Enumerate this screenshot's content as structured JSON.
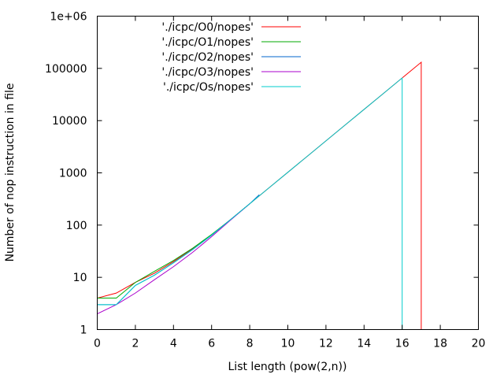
{
  "chart_data": {
    "type": "line",
    "title": "",
    "xlabel": "List length (pow(2,n))",
    "ylabel": "Number of nop instruction in file",
    "xlim": [
      0,
      20
    ],
    "ylim": [
      1,
      1000000
    ],
    "yscale": "log",
    "grid": false,
    "legend_position": "top-left",
    "x_ticks": [
      "0",
      "2",
      "4",
      "6",
      "8",
      "10",
      "12",
      "14",
      "16",
      "18",
      "20"
    ],
    "y_ticks": [
      "1",
      "10",
      "100",
      "1000",
      "10000",
      "100000",
      "1e+06"
    ],
    "series": [
      {
        "name": "'./icpc/O0/nopes'",
        "color": "#ff0000",
        "points": [
          [
            0,
            4
          ],
          [
            1,
            5
          ],
          [
            2,
            8
          ],
          [
            3,
            12
          ],
          [
            4,
            20
          ],
          [
            5,
            35
          ],
          [
            6,
            65
          ],
          [
            7,
            128
          ],
          [
            8,
            256
          ],
          [
            9,
            512
          ],
          [
            10,
            1024
          ],
          [
            11,
            2048
          ],
          [
            12,
            4096
          ],
          [
            13,
            8192
          ],
          [
            14,
            16384
          ],
          [
            15,
            32768
          ],
          [
            16,
            65536
          ],
          [
            17,
            131072
          ],
          [
            17,
            1
          ]
        ]
      },
      {
        "name": "'./icpc/O1/nopes'",
        "color": "#00aa00",
        "points": [
          [
            0,
            4
          ],
          [
            1,
            4
          ],
          [
            2,
            8
          ],
          [
            3,
            13
          ],
          [
            4,
            21
          ],
          [
            5,
            36
          ],
          [
            6,
            66
          ],
          [
            7,
            128
          ],
          [
            8,
            256
          ]
        ]
      },
      {
        "name": "'./icpc/O2/nopes'",
        "color": "#0066cc",
        "points": [
          [
            0,
            3
          ],
          [
            1,
            3
          ],
          [
            2,
            7
          ],
          [
            3,
            11
          ],
          [
            4,
            19
          ],
          [
            5,
            34
          ],
          [
            6,
            64
          ],
          [
            7,
            128
          ],
          [
            8,
            256
          ],
          [
            8.5,
            380
          ]
        ]
      },
      {
        "name": "'./icpc/O3/nopes'",
        "color": "#aa00cc",
        "points": [
          [
            0,
            2
          ],
          [
            1,
            3
          ],
          [
            2,
            5
          ],
          [
            3,
            9
          ],
          [
            4,
            16
          ],
          [
            5,
            30
          ],
          [
            6,
            60
          ],
          [
            7,
            125
          ],
          [
            8,
            256
          ]
        ]
      },
      {
        "name": "'./icpc/Os/nopes'",
        "color": "#00cccc",
        "points": [
          [
            0,
            3
          ],
          [
            1,
            3
          ],
          [
            2,
            7
          ],
          [
            3,
            11
          ],
          [
            4,
            19
          ],
          [
            5,
            34
          ],
          [
            6,
            64
          ],
          [
            7,
            128
          ],
          [
            8,
            256
          ],
          [
            9,
            512
          ],
          [
            10,
            1024
          ],
          [
            11,
            2048
          ],
          [
            12,
            4096
          ],
          [
            13,
            8192
          ],
          [
            14,
            16384
          ],
          [
            15,
            32768
          ],
          [
            16,
            65536
          ],
          [
            16,
            1
          ]
        ]
      }
    ]
  }
}
